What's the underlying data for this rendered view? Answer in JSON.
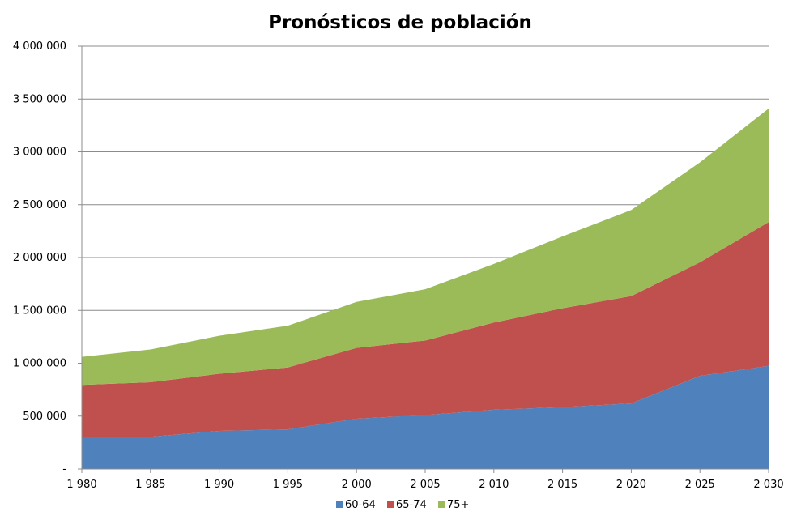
{
  "chart_data": {
    "type": "area",
    "stacked": true,
    "title": "Pronósticos de población",
    "xlabel": "",
    "ylabel": "",
    "categories": [
      "1 980",
      "1 985",
      "1 990",
      "1 995",
      "2 000",
      "2 005",
      "2 010",
      "2 015",
      "2 020",
      "2 025",
      "2 030"
    ],
    "ylim": [
      0,
      4000000
    ],
    "yticks": [
      0,
      500000,
      1000000,
      1500000,
      2000000,
      2500000,
      3000000,
      3500000,
      4000000
    ],
    "ytick_labels": [
      "-",
      "500 000",
      "1 000 000",
      "1 500 000",
      "2 000 000",
      "2 500 000",
      "3 000 000",
      "3 500 000",
      "4 000 000"
    ],
    "grid": true,
    "legend_position": "bottom",
    "series": [
      {
        "name": "60-64",
        "color": "#4F81BD",
        "values": [
          300000,
          305000,
          360000,
          375000,
          475000,
          510000,
          560000,
          585000,
          620000,
          880000,
          975000
        ]
      },
      {
        "name": "65-74",
        "color": "#C0504D",
        "values": [
          495000,
          515000,
          540000,
          585000,
          670000,
          705000,
          825000,
          935000,
          1015000,
          1075000,
          1360000
        ]
      },
      {
        "name": "75+",
        "color": "#9BBB59",
        "values": [
          265000,
          310000,
          360000,
          395000,
          435000,
          485000,
          555000,
          680000,
          815000,
          945000,
          1075000
        ]
      }
    ]
  }
}
